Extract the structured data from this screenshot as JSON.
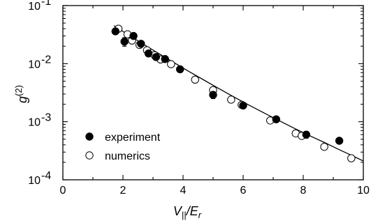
{
  "chart_data": {
    "type": "scatter",
    "xlabel": {
      "main": "V",
      "sub": "||",
      "slash": "/E",
      "sub2": "r"
    },
    "ylabel": {
      "main": "g",
      "sup": "(2)"
    },
    "xlim": [
      0,
      10
    ],
    "ylim": [
      0.0001,
      0.1
    ],
    "yscale": "log",
    "x_ticks": [
      "0",
      "2",
      "4",
      "6",
      "8",
      "10"
    ],
    "y_ticks": [
      {
        "base": "10",
        "exp": "-1"
      },
      {
        "base": "10",
        "exp": "-2"
      },
      {
        "base": "10",
        "exp": "-3"
      },
      {
        "base": "10",
        "exp": "-4"
      }
    ],
    "legend_position": "bottom-left",
    "series": [
      {
        "name": "experiment",
        "marker": "filled-circle",
        "x": [
          1.75,
          2.05,
          2.35,
          2.6,
          2.85,
          3.1,
          3.4,
          3.9,
          5.0,
          6.0,
          7.1,
          8.1,
          9.2
        ],
        "y": [
          0.036,
          0.024,
          0.03,
          0.022,
          0.015,
          0.013,
          0.012,
          0.008,
          0.0029,
          0.0019,
          0.0011,
          0.0006,
          0.00047
        ],
        "y_err": [
          0.004,
          0.004,
          0.003,
          0.002,
          0.0015,
          0.001,
          0.001,
          0.0007,
          0.0004,
          0.00015,
          0.00012,
          8e-05,
          5e-05
        ]
      },
      {
        "name": "numerics",
        "marker": "open-circle",
        "x": [
          1.85,
          2.15,
          2.3,
          2.55,
          2.8,
          3.05,
          3.25,
          3.6,
          4.4,
          5.0,
          5.6,
          5.95,
          6.9,
          7.75,
          7.95,
          8.7,
          9.6
        ],
        "y": [
          0.04,
          0.032,
          0.025,
          0.021,
          0.017,
          0.014,
          0.0118,
          0.0098,
          0.0053,
          0.0035,
          0.0024,
          0.00195,
          0.00105,
          0.00063,
          0.00057,
          0.00037,
          0.000235
        ]
      },
      {
        "name": "",
        "line": true,
        "x": [
          1.7,
          2.2,
          2.7,
          3.2,
          3.7,
          4.2,
          4.7,
          5.2,
          5.7,
          6.2,
          6.7,
          7.2,
          7.7,
          8.2,
          8.7,
          9.2,
          9.7,
          10.0
        ],
        "y": [
          0.045,
          0.0309,
          0.0213,
          0.0148,
          0.0104,
          0.0073,
          0.0052,
          0.0037,
          0.00266,
          0.00193,
          0.00141,
          0.00104,
          0.00077,
          0.00058,
          0.00044,
          0.00033,
          0.00025,
          0.00021
        ]
      }
    ]
  }
}
